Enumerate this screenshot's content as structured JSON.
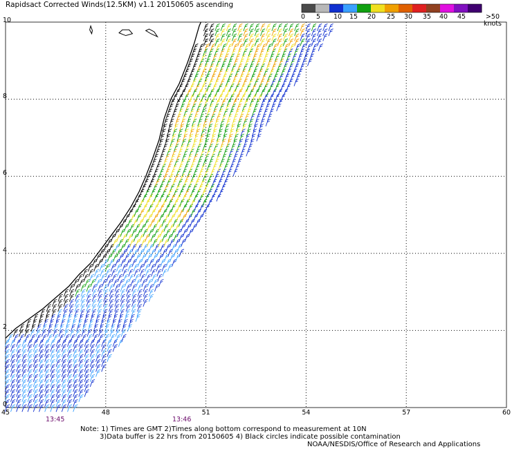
{
  "title": "Rapidsact Corrected Winds(12.5KM) v1.1 20150605 ascending",
  "legend": {
    "colors": [
      "#4a4a4a",
      "#b8b8b8",
      "#1030d0",
      "#3aa0ff",
      "#10a010",
      "#f0e020",
      "#f0a000",
      "#e06000",
      "#e02020",
      "#904020",
      "#e010e0",
      "#8010c0",
      "#400070"
    ],
    "labels": [
      "0",
      "5",
      "10",
      "15",
      "20",
      "25",
      "30",
      "35",
      "40",
      "45",
      ">50 knots"
    ]
  },
  "axes": {
    "y_labels": [
      "10",
      "8",
      "6",
      "4",
      "2",
      "0"
    ],
    "x_labels": [
      "45",
      "48",
      "51",
      "54",
      "57",
      "60"
    ],
    "xlim": [
      45,
      60
    ],
    "ylim": [
      0,
      10
    ],
    "grid": true
  },
  "times": [
    "13:45",
    "13:46"
  ],
  "notes": {
    "line1": "Note: 1) Times are GMT 2)Times along bottom correspond to measurement at 10N",
    "line2": "3)Data buffer is 22 hrs from 20150605 4) Black circles indicate possible contamination",
    "credit": "NOAA/NESDIS/Office of Research and Applications"
  },
  "swath_colors": {
    "near_coast": "#000000",
    "green": "#10a010",
    "yellow": "#f0e020",
    "orange": "#f0a000",
    "dark_blue": "#1030d0",
    "light_blue": "#3aa0ff"
  }
}
